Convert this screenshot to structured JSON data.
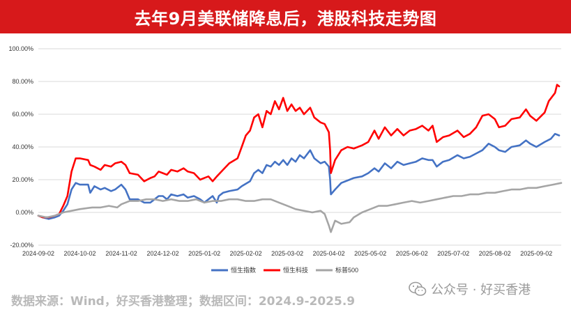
{
  "header": {
    "title": "去年9月美联储降息后，港股科技走势图"
  },
  "footer": {
    "source": "数据来源：Wind，好买香港整理；数据区间：2024.9-2025.9"
  },
  "brand": {
    "text": "公众号 · 好买香港",
    "icon": "wechat-icon"
  },
  "chart_data": {
    "type": "line",
    "title": "",
    "xlabel": "",
    "ylabel": "",
    "ylim": [
      -20,
      100
    ],
    "yticks": [
      "100.00%",
      "80.00%",
      "60.00%",
      "40.00%",
      "20.00%",
      "0.00%",
      "-20.00%"
    ],
    "x_categories": [
      "2024-09-02",
      "2024-10-02",
      "2024-11-02",
      "2024-12-02",
      "2025-01-02",
      "2025-02-02",
      "2025-03-02",
      "2025-04-02",
      "2025-05-02",
      "2025-06-02",
      "2025-07-02",
      "2025-08-02",
      "2025-09-02"
    ],
    "x_index_range": [
      0,
      12.6
    ],
    "grid": "horizontal",
    "legend": "bottom-center",
    "series": [
      {
        "name": "恒生指数",
        "color": "#4472c4",
        "points": [
          [
            0,
            -2
          ],
          [
            0.1,
            -3
          ],
          [
            0.25,
            -4
          ],
          [
            0.4,
            -3
          ],
          [
            0.5,
            -2
          ],
          [
            0.6,
            1
          ],
          [
            0.7,
            5
          ],
          [
            0.8,
            14
          ],
          [
            0.9,
            18
          ],
          [
            1.0,
            17
          ],
          [
            1.2,
            17
          ],
          [
            1.25,
            12
          ],
          [
            1.35,
            16
          ],
          [
            1.5,
            14
          ],
          [
            1.6,
            15
          ],
          [
            1.75,
            13
          ],
          [
            1.85,
            14
          ],
          [
            2.0,
            17
          ],
          [
            2.1,
            14
          ],
          [
            2.2,
            8
          ],
          [
            2.4,
            8
          ],
          [
            2.55,
            6
          ],
          [
            2.7,
            6
          ],
          [
            2.8,
            8
          ],
          [
            2.9,
            10
          ],
          [
            3.0,
            10
          ],
          [
            3.1,
            8
          ],
          [
            3.2,
            11
          ],
          [
            3.35,
            10
          ],
          [
            3.5,
            11
          ],
          [
            3.6,
            9
          ],
          [
            3.75,
            10
          ],
          [
            3.9,
            8
          ],
          [
            4.0,
            6
          ],
          [
            4.1,
            8
          ],
          [
            4.2,
            10
          ],
          [
            4.3,
            6
          ],
          [
            4.35,
            10
          ],
          [
            4.45,
            12
          ],
          [
            4.6,
            13
          ],
          [
            4.8,
            14
          ],
          [
            4.9,
            16
          ],
          [
            5.1,
            19
          ],
          [
            5.2,
            24
          ],
          [
            5.3,
            26
          ],
          [
            5.4,
            24
          ],
          [
            5.5,
            29
          ],
          [
            5.6,
            28
          ],
          [
            5.7,
            31
          ],
          [
            5.8,
            29
          ],
          [
            5.9,
            32
          ],
          [
            6.0,
            29
          ],
          [
            6.1,
            33
          ],
          [
            6.2,
            31
          ],
          [
            6.3,
            35
          ],
          [
            6.4,
            33
          ],
          [
            6.55,
            38
          ],
          [
            6.65,
            33
          ],
          [
            6.8,
            30
          ],
          [
            6.9,
            31
          ],
          [
            7.0,
            28
          ],
          [
            7.03,
            20
          ],
          [
            7.05,
            11
          ],
          [
            7.15,
            14
          ],
          [
            7.3,
            18
          ],
          [
            7.5,
            20
          ],
          [
            7.6,
            21
          ],
          [
            7.8,
            22
          ],
          [
            7.95,
            24
          ],
          [
            8.1,
            27
          ],
          [
            8.2,
            25
          ],
          [
            8.35,
            30
          ],
          [
            8.5,
            27
          ],
          [
            8.65,
            31
          ],
          [
            8.8,
            29
          ],
          [
            8.95,
            30
          ],
          [
            9.1,
            31
          ],
          [
            9.25,
            33
          ],
          [
            9.4,
            32
          ],
          [
            9.5,
            32
          ],
          [
            9.6,
            28
          ],
          [
            9.75,
            31
          ],
          [
            9.9,
            32
          ],
          [
            10.1,
            35
          ],
          [
            10.25,
            33
          ],
          [
            10.4,
            34
          ],
          [
            10.55,
            36
          ],
          [
            10.7,
            38
          ],
          [
            10.85,
            42
          ],
          [
            11.0,
            40
          ],
          [
            11.1,
            38
          ],
          [
            11.25,
            37
          ],
          [
            11.4,
            40
          ],
          [
            11.6,
            41
          ],
          [
            11.75,
            44
          ],
          [
            11.85,
            42
          ],
          [
            12.0,
            40
          ],
          [
            12.2,
            43
          ],
          [
            12.35,
            45
          ],
          [
            12.45,
            48
          ],
          [
            12.55,
            47
          ]
        ]
      },
      {
        "name": "恒生科技",
        "color": "#ff0000",
        "points": [
          [
            0,
            -2
          ],
          [
            0.1,
            -3
          ],
          [
            0.25,
            -3
          ],
          [
            0.4,
            -2
          ],
          [
            0.5,
            -1
          ],
          [
            0.6,
            4
          ],
          [
            0.7,
            10
          ],
          [
            0.8,
            25
          ],
          [
            0.9,
            33
          ],
          [
            1.0,
            33
          ],
          [
            1.2,
            32
          ],
          [
            1.25,
            29
          ],
          [
            1.35,
            28
          ],
          [
            1.5,
            26
          ],
          [
            1.6,
            29
          ],
          [
            1.75,
            28
          ],
          [
            1.85,
            30
          ],
          [
            2.0,
            31
          ],
          [
            2.1,
            29
          ],
          [
            2.2,
            24
          ],
          [
            2.4,
            23
          ],
          [
            2.55,
            19
          ],
          [
            2.7,
            21
          ],
          [
            2.8,
            22
          ],
          [
            2.9,
            25
          ],
          [
            3.0,
            24
          ],
          [
            3.1,
            23
          ],
          [
            3.2,
            26
          ],
          [
            3.35,
            25
          ],
          [
            3.5,
            27
          ],
          [
            3.6,
            25
          ],
          [
            3.75,
            24
          ],
          [
            3.9,
            20
          ],
          [
            4.0,
            21
          ],
          [
            4.1,
            22
          ],
          [
            4.2,
            19
          ],
          [
            4.3,
            22
          ],
          [
            4.45,
            26
          ],
          [
            4.6,
            30
          ],
          [
            4.8,
            33
          ],
          [
            4.9,
            40
          ],
          [
            5.0,
            47
          ],
          [
            5.1,
            50
          ],
          [
            5.2,
            58
          ],
          [
            5.3,
            60
          ],
          [
            5.4,
            52
          ],
          [
            5.5,
            62
          ],
          [
            5.6,
            60
          ],
          [
            5.7,
            68
          ],
          [
            5.8,
            63
          ],
          [
            5.9,
            70
          ],
          [
            6.0,
            62
          ],
          [
            6.1,
            66
          ],
          [
            6.2,
            62
          ],
          [
            6.3,
            64
          ],
          [
            6.4,
            60
          ],
          [
            6.55,
            64
          ],
          [
            6.65,
            58
          ],
          [
            6.8,
            55
          ],
          [
            6.9,
            54
          ],
          [
            7.0,
            49
          ],
          [
            7.03,
            38
          ],
          [
            7.05,
            24
          ],
          [
            7.15,
            32
          ],
          [
            7.3,
            38
          ],
          [
            7.45,
            40
          ],
          [
            7.6,
            39
          ],
          [
            7.8,
            41
          ],
          [
            7.95,
            43
          ],
          [
            8.1,
            50
          ],
          [
            8.2,
            45
          ],
          [
            8.35,
            52
          ],
          [
            8.5,
            47
          ],
          [
            8.65,
            51
          ],
          [
            8.8,
            47
          ],
          [
            8.95,
            50
          ],
          [
            9.1,
            51
          ],
          [
            9.25,
            53
          ],
          [
            9.4,
            50
          ],
          [
            9.5,
            53
          ],
          [
            9.6,
            43
          ],
          [
            9.75,
            46
          ],
          [
            9.9,
            47
          ],
          [
            10.1,
            50
          ],
          [
            10.25,
            46
          ],
          [
            10.4,
            48
          ],
          [
            10.55,
            52
          ],
          [
            10.7,
            59
          ],
          [
            10.85,
            60
          ],
          [
            11.0,
            57
          ],
          [
            11.1,
            52
          ],
          [
            11.25,
            53
          ],
          [
            11.4,
            57
          ],
          [
            11.6,
            58
          ],
          [
            11.75,
            63
          ],
          [
            11.85,
            59
          ],
          [
            12.0,
            56
          ],
          [
            12.2,
            61
          ],
          [
            12.3,
            68
          ],
          [
            12.45,
            73
          ],
          [
            12.5,
            78
          ],
          [
            12.55,
            77
          ]
        ]
      },
      {
        "name": "标普500",
        "color": "#a5a5a5",
        "points": [
          [
            0,
            -2
          ],
          [
            0.2,
            -3
          ],
          [
            0.4,
            -2
          ],
          [
            0.6,
            0
          ],
          [
            0.8,
            1
          ],
          [
            1.0,
            2
          ],
          [
            1.3,
            3
          ],
          [
            1.5,
            3
          ],
          [
            1.7,
            4
          ],
          [
            1.9,
            3
          ],
          [
            2.0,
            5
          ],
          [
            2.2,
            7
          ],
          [
            2.4,
            7
          ],
          [
            2.6,
            8
          ],
          [
            2.8,
            8
          ],
          [
            3.0,
            7
          ],
          [
            3.2,
            8
          ],
          [
            3.4,
            7
          ],
          [
            3.6,
            7
          ],
          [
            3.8,
            8
          ],
          [
            4.0,
            6
          ],
          [
            4.2,
            7
          ],
          [
            4.4,
            7
          ],
          [
            4.6,
            8
          ],
          [
            4.8,
            8
          ],
          [
            5.0,
            7
          ],
          [
            5.2,
            7
          ],
          [
            5.4,
            8
          ],
          [
            5.6,
            8
          ],
          [
            5.8,
            6
          ],
          [
            6.0,
            4
          ],
          [
            6.2,
            2
          ],
          [
            6.4,
            1
          ],
          [
            6.6,
            0
          ],
          [
            6.8,
            1
          ],
          [
            6.9,
            -1
          ],
          [
            7.0,
            -8
          ],
          [
            7.05,
            -12
          ],
          [
            7.15,
            -5
          ],
          [
            7.3,
            -7
          ],
          [
            7.5,
            -6
          ],
          [
            7.6,
            -3
          ],
          [
            7.8,
            0
          ],
          [
            8.0,
            2
          ],
          [
            8.2,
            4
          ],
          [
            8.4,
            4
          ],
          [
            8.6,
            5
          ],
          [
            8.8,
            6
          ],
          [
            9.0,
            7
          ],
          [
            9.2,
            6
          ],
          [
            9.4,
            7
          ],
          [
            9.6,
            8
          ],
          [
            9.8,
            9
          ],
          [
            10.0,
            10
          ],
          [
            10.2,
            10
          ],
          [
            10.4,
            11
          ],
          [
            10.6,
            11
          ],
          [
            10.8,
            12
          ],
          [
            11.0,
            12
          ],
          [
            11.2,
            13
          ],
          [
            11.4,
            14
          ],
          [
            11.6,
            14
          ],
          [
            11.8,
            15
          ],
          [
            12.0,
            15
          ],
          [
            12.2,
            16
          ],
          [
            12.4,
            17
          ],
          [
            12.6,
            18
          ]
        ]
      }
    ]
  }
}
